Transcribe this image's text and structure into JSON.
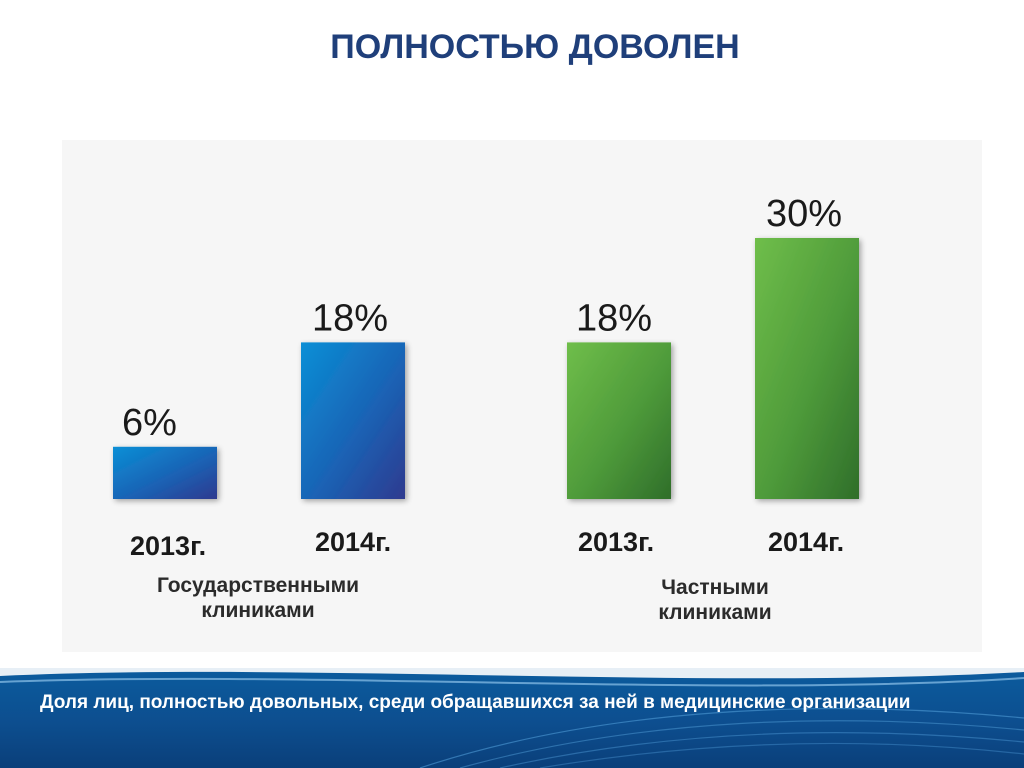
{
  "title": "ПОЛНОСТЬЮ ДОВОЛЕН",
  "chart_data": {
    "type": "bar",
    "groups": [
      {
        "name": "Государственными\nклиниками",
        "categories": [
          "2013г.",
          "2014г."
        ],
        "values": [
          6,
          18
        ],
        "labels": [
          "6%",
          "18%"
        ],
        "color": "#1a6fbf"
      },
      {
        "name": "Частными\nклиниками",
        "categories": [
          "2013г.",
          "2014г."
        ],
        "values": [
          18,
          30
        ],
        "labels": [
          "18%",
          "30%"
        ],
        "color": "#4e9a3a"
      }
    ],
    "unit": "%",
    "ylim": [
      0,
      30
    ],
    "grid": false
  },
  "footer": {
    "text": "Доля лиц, полностью довольных, среди обращавшихся за ней в медицинские организации"
  }
}
